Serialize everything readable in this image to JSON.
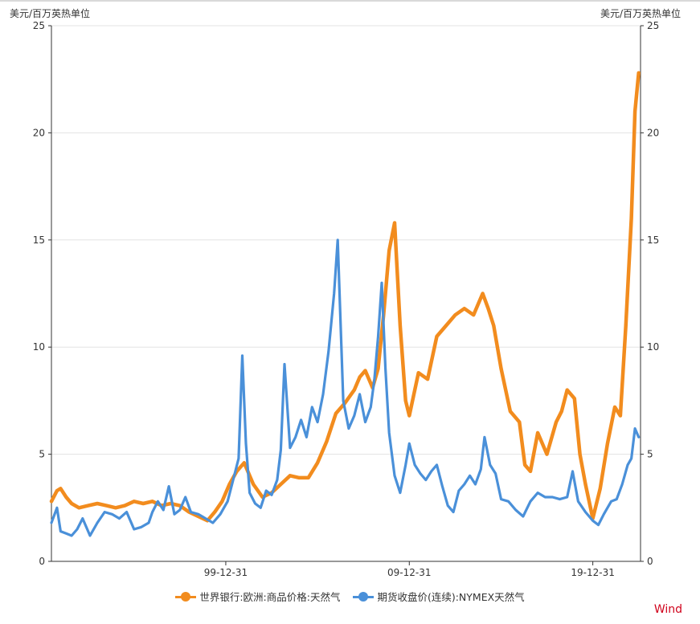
{
  "chart_data": {
    "type": "line",
    "title": "",
    "y_left_unit": "美元/百万英热单位",
    "y_right_unit": "美元/百万英热单位",
    "x_tick_labels": [
      "99-12-31",
      "09-12-31",
      "19-12-31"
    ],
    "x_range": [
      1990.5,
      2022.6
    ],
    "ylim": [
      0,
      25
    ],
    "yticks": [
      0,
      5,
      10,
      15,
      20,
      25
    ],
    "grid": true,
    "legend_position": "bottom",
    "series": [
      {
        "name": "世界银行:欧洲:商品价格:天然气",
        "color": "#f28c1e",
        "x": [
          1990.5,
          1990.8,
          1991.0,
          1991.3,
          1991.6,
          1992.0,
          1992.5,
          1993.0,
          1993.5,
          1994.0,
          1994.5,
          1995.0,
          1995.5,
          1996.0,
          1996.5,
          1997.0,
          1997.5,
          1998.0,
          1998.5,
          1999.0,
          1999.4,
          1999.8,
          2000.2,
          2000.6,
          2001.0,
          2001.5,
          2002.0,
          2002.5,
          2003.0,
          2003.5,
          2004.0,
          2004.5,
          2005.0,
          2005.5,
          2006.0,
          2006.5,
          2007.0,
          2007.3,
          2007.6,
          2008.0,
          2008.3,
          2008.6,
          2008.9,
          2009.2,
          2009.5,
          2009.8,
          2010.0,
          2010.5,
          2011.0,
          2011.5,
          2012.0,
          2012.5,
          2013.0,
          2013.5,
          2014.0,
          2014.3,
          2014.6,
          2015.0,
          2015.5,
          2016.0,
          2016.3,
          2016.6,
          2017.0,
          2017.5,
          2018.0,
          2018.3,
          2018.6,
          2019.0,
          2019.3,
          2019.6,
          2020.0,
          2020.4,
          2020.8,
          2021.2,
          2021.5,
          2021.8,
          2022.1,
          2022.3,
          2022.5
        ],
        "y": [
          2.8,
          3.3,
          3.4,
          3.0,
          2.7,
          2.5,
          2.6,
          2.7,
          2.6,
          2.5,
          2.6,
          2.8,
          2.7,
          2.8,
          2.6,
          2.7,
          2.6,
          2.3,
          2.1,
          1.9,
          2.3,
          2.8,
          3.6,
          4.2,
          4.6,
          3.6,
          3.0,
          3.2,
          3.6,
          4.0,
          3.9,
          3.9,
          4.6,
          5.6,
          6.9,
          7.4,
          8.0,
          8.6,
          8.9,
          8.1,
          9.0,
          11.5,
          14.5,
          15.8,
          11.0,
          7.5,
          6.8,
          8.8,
          8.5,
          10.5,
          11.0,
          11.5,
          11.8,
          11.5,
          12.5,
          11.8,
          11.0,
          9.0,
          7.0,
          6.5,
          4.5,
          4.2,
          6.0,
          5.0,
          6.5,
          7.0,
          8.0,
          7.6,
          5.0,
          3.6,
          2.0,
          3.4,
          5.5,
          7.2,
          6.8,
          11.0,
          16.0,
          21.0,
          22.8
        ]
      },
      {
        "name": "期货收盘价(连续):NYMEX天然气",
        "color": "#4a90d9",
        "x": [
          1990.5,
          1990.8,
          1991.0,
          1991.3,
          1991.6,
          1991.9,
          1992.2,
          1992.6,
          1993.0,
          1993.4,
          1993.8,
          1994.2,
          1994.6,
          1995.0,
          1995.4,
          1995.8,
          1996.0,
          1996.3,
          1996.6,
          1996.9,
          1997.2,
          1997.5,
          1997.8,
          1998.1,
          1998.5,
          1998.9,
          1999.3,
          1999.7,
          2000.1,
          2000.4,
          2000.7,
          2000.9,
          2001.1,
          2001.3,
          2001.6,
          2001.9,
          2002.2,
          2002.5,
          2002.8,
          2003.0,
          2003.2,
          2003.5,
          2003.8,
          2004.1,
          2004.4,
          2004.7,
          2005.0,
          2005.3,
          2005.6,
          2005.9,
          2006.1,
          2006.4,
          2006.7,
          2007.0,
          2007.3,
          2007.6,
          2007.9,
          2008.1,
          2008.3,
          2008.5,
          2008.7,
          2008.9,
          2009.2,
          2009.5,
          2009.8,
          2010.0,
          2010.3,
          2010.6,
          2010.9,
          2011.2,
          2011.5,
          2011.8,
          2012.1,
          2012.4,
          2012.7,
          2013.0,
          2013.3,
          2013.6,
          2013.9,
          2014.1,
          2014.4,
          2014.7,
          2015.0,
          2015.4,
          2015.8,
          2016.2,
          2016.6,
          2017.0,
          2017.4,
          2017.8,
          2018.2,
          2018.6,
          2018.9,
          2019.2,
          2019.6,
          2020.0,
          2020.3,
          2020.6,
          2021.0,
          2021.3,
          2021.6,
          2021.9,
          2022.1,
          2022.3,
          2022.5
        ],
        "y": [
          1.8,
          2.5,
          1.4,
          1.3,
          1.2,
          1.5,
          2.0,
          1.2,
          1.8,
          2.3,
          2.2,
          2.0,
          2.3,
          1.5,
          1.6,
          1.8,
          2.3,
          2.8,
          2.4,
          3.5,
          2.2,
          2.4,
          3.0,
          2.3,
          2.2,
          2.0,
          1.8,
          2.2,
          2.8,
          3.8,
          4.8,
          9.6,
          5.5,
          3.2,
          2.7,
          2.5,
          3.3,
          3.1,
          3.8,
          5.2,
          9.2,
          5.3,
          5.8,
          6.6,
          5.8,
          7.2,
          6.5,
          7.8,
          9.8,
          12.5,
          15.0,
          7.5,
          6.2,
          6.8,
          7.8,
          6.5,
          7.2,
          8.5,
          10.5,
          13.0,
          9.0,
          6.0,
          4.0,
          3.2,
          4.5,
          5.5,
          4.5,
          4.1,
          3.8,
          4.2,
          4.5,
          3.5,
          2.6,
          2.3,
          3.3,
          3.6,
          4.0,
          3.6,
          4.3,
          5.8,
          4.5,
          4.1,
          2.9,
          2.8,
          2.4,
          2.1,
          2.8,
          3.2,
          3.0,
          3.0,
          2.9,
          3.0,
          4.2,
          2.8,
          2.3,
          1.9,
          1.7,
          2.2,
          2.8,
          2.9,
          3.6,
          4.5,
          4.8,
          6.2,
          5.8
        ]
      }
    ]
  },
  "source_label": "Wind"
}
